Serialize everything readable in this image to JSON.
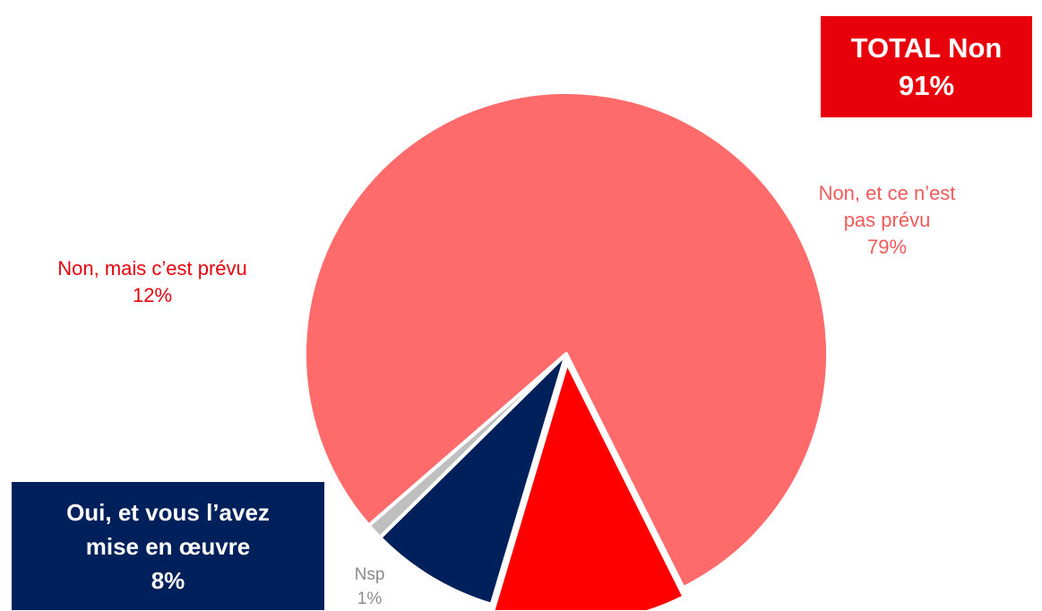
{
  "chart_data": {
    "type": "pie",
    "title": "",
    "slices": [
      {
        "label": "Non, et ce n’est pas prévu",
        "value": 79,
        "value_label": "79%",
        "color": "#ff6b6b"
      },
      {
        "label": "Non, mais c’est prévu",
        "value": 12,
        "value_label": "12%",
        "color": "#ff0000"
      },
      {
        "label": "Oui, et vous l’avez mise en œuvre",
        "value": 8,
        "value_label": "8%",
        "color": "#00205b"
      },
      {
        "label": "Nsp",
        "value": 1,
        "value_label": "1%",
        "color": "#bfbfbf"
      }
    ],
    "annotations": {
      "total_non": {
        "line1": "TOTAL Non",
        "line2": "91%",
        "color": "#e8000b"
      }
    }
  },
  "labels": {
    "non_prevu": {
      "line1": "Non, et ce n’est",
      "line2": "pas prévu",
      "pct": "79%"
    },
    "non_mais": {
      "line1": "Non, mais c’est prévu",
      "pct": "12%"
    },
    "oui": {
      "line1": "Oui, et vous l’avez",
      "line2": "mise en œuvre",
      "pct": "8%"
    },
    "nsp": {
      "line1": "Nsp",
      "pct": "1%"
    }
  }
}
